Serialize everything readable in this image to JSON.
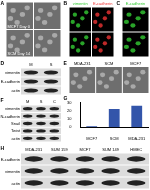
{
  "panels": [
    {
      "letter": "A",
      "kind": "images",
      "labels": [
        "MCF7 Day 0",
        "SCM Day 14"
      ]
    },
    {
      "letter": "B",
      "kind": "fluorescence",
      "channels": [
        {
          "name": "vimentin",
          "color": "#33cc33"
        },
        {
          "name": "E-cadherin",
          "color": "#ee3333"
        }
      ]
    },
    {
      "letter": "C",
      "kind": "fluorescence",
      "channels": [
        {
          "name": "E-cadherin",
          "color": "#33cc33"
        }
      ]
    },
    {
      "letter": "D",
      "kind": "blot",
      "rows": [
        "vimentin",
        "E-cadherin",
        "actin"
      ],
      "columns": [
        "M",
        "S"
      ]
    },
    {
      "letter": "E",
      "kind": "image_row",
      "labels": [
        "MDA-231",
        "SCM",
        "MCF7"
      ]
    },
    {
      "letter": "F",
      "kind": "blot",
      "rows": [
        "vimentin",
        "N-cadherin",
        "Snail",
        "Twist",
        "actin"
      ],
      "columns": [
        "M",
        "S",
        "C"
      ]
    },
    {
      "letter": "G",
      "kind": "chart"
    },
    {
      "letter": "H",
      "kind": "blot",
      "rows": [
        "E-cadherin",
        "vimentin",
        "actin"
      ],
      "columns": [
        "MDA-231",
        "SUM 159",
        "MCF7",
        "SUM 149",
        "HMEC"
      ]
    }
  ],
  "chart_data": {
    "type": "bar",
    "categories": [
      "MCF7",
      "SCM",
      "MDA-231"
    ],
    "values": [
      1,
      22,
      26
    ],
    "color": "#3355aa",
    "ylim": [
      0,
      30
    ],
    "yticks": [
      0,
      10,
      20,
      30
    ],
    "grid": false
  }
}
